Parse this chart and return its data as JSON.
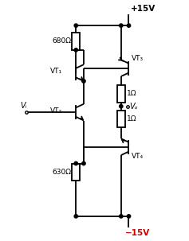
{
  "bg_color": "#ffffff",
  "line_color": "#000000",
  "neg_voltage_color": "#cc0000",
  "pos_voltage": "+15V",
  "neg_voltage": "−15V",
  "labels": {
    "VT1": "VT₁",
    "VT2": "VT₂",
    "VT3": "VT₃",
    "VT4": "VT₄",
    "R_top": "680Ω",
    "R_bot": "630Ω",
    "R1": "1Ω",
    "R2": "1Ω",
    "Vi": "Vᵢ",
    "Vo": "Vₒ"
  },
  "lw": 1.3
}
